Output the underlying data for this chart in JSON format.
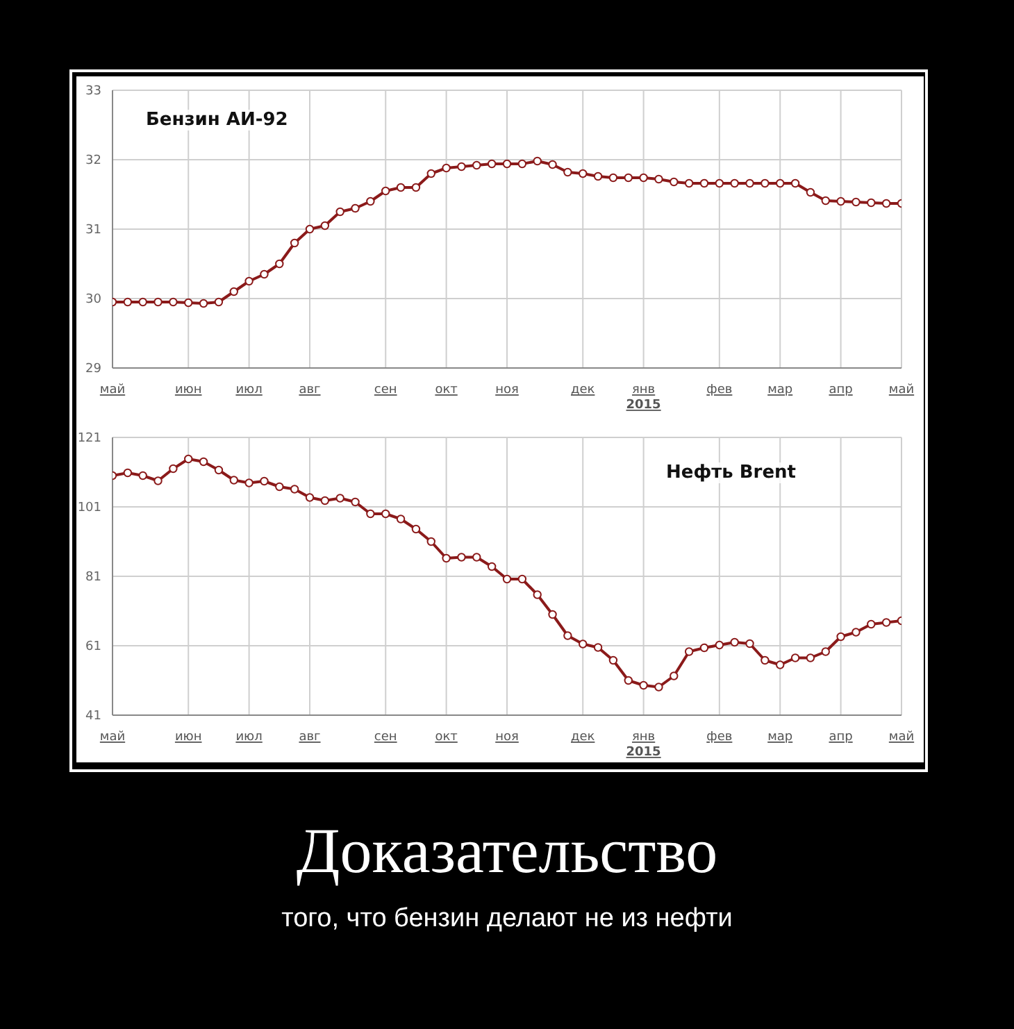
{
  "chart_data": [
    {
      "type": "line",
      "title": "Бензин АИ-92",
      "marker": "circle",
      "grid": true,
      "categories": [
        "май",
        null,
        null,
        null,
        null,
        "июн",
        null,
        null,
        null,
        "июл",
        null,
        null,
        null,
        "авг",
        null,
        null,
        null,
        null,
        "сен",
        null,
        null,
        null,
        "окт",
        null,
        null,
        null,
        "ноя",
        null,
        null,
        null,
        null,
        "дек",
        null,
        null,
        null,
        "янв\n2015",
        null,
        null,
        null,
        null,
        "фев",
        null,
        null,
        null,
        "мар",
        null,
        null,
        null,
        "апр",
        null,
        null,
        null,
        "май"
      ],
      "series": [
        {
          "color": "#8b1a1a",
          "values": [
            29.95,
            29.95,
            29.95,
            29.95,
            29.95,
            29.94,
            29.93,
            29.95,
            30.1,
            30.25,
            30.35,
            30.5,
            30.8,
            31.0,
            31.05,
            31.25,
            31.3,
            31.4,
            31.55,
            31.6,
            31.6,
            31.8,
            31.88,
            31.9,
            31.92,
            31.94,
            31.94,
            31.94,
            31.98,
            31.93,
            31.82,
            31.8,
            31.76,
            31.74,
            31.74,
            31.74,
            31.72,
            31.68,
            31.66,
            31.66,
            31.66,
            31.66,
            31.66,
            31.66,
            31.66,
            31.66,
            31.53,
            31.41,
            31.4,
            31.39,
            31.38,
            31.37,
            31.37
          ]
        }
      ],
      "ylim": [
        29,
        33
      ],
      "yticks": [
        29,
        30,
        31,
        32,
        33
      ]
    },
    {
      "type": "line",
      "title": "Нефть Brent",
      "marker": "circle",
      "grid": true,
      "categories": [
        "май",
        null,
        null,
        null,
        null,
        "июн",
        null,
        null,
        null,
        "июл",
        null,
        null,
        null,
        "авг",
        null,
        null,
        null,
        null,
        "сен",
        null,
        null,
        null,
        "окт",
        null,
        null,
        null,
        "ноя",
        null,
        null,
        null,
        null,
        "дек",
        null,
        null,
        null,
        "янв\n2015",
        null,
        null,
        null,
        null,
        "фев",
        null,
        null,
        null,
        "мар",
        null,
        null,
        null,
        "апр",
        null,
        null,
        null,
        "май"
      ],
      "series": [
        {
          "color": "#8b1a1a",
          "values": [
            110,
            110.8,
            110,
            108.5,
            112,
            114.8,
            114,
            111.6,
            108.7,
            107.9,
            108.4,
            106.8,
            106.1,
            103.7,
            102.8,
            103.5,
            102.4,
            99,
            99,
            97.5,
            94.6,
            91,
            86.2,
            86.5,
            86.5,
            83.8,
            80.2,
            80.2,
            75.7,
            70,
            63.9,
            61.5,
            60.5,
            56.8,
            51,
            49.6,
            49.1,
            52.3,
            59.3,
            60.4,
            61.2,
            62,
            61.6,
            56.8,
            55.5,
            57.5,
            57.5,
            59.3,
            63.6,
            64.9,
            67.2,
            67.7,
            68.2
          ]
        }
      ],
      "ylim": [
        41,
        121
      ],
      "yticks": [
        41,
        61,
        81,
        101,
        121
      ]
    },
    {
      "type": "other",
      "title": "Доказательство",
      "subtitle": "того, что бензин делают не из нефти"
    }
  ]
}
